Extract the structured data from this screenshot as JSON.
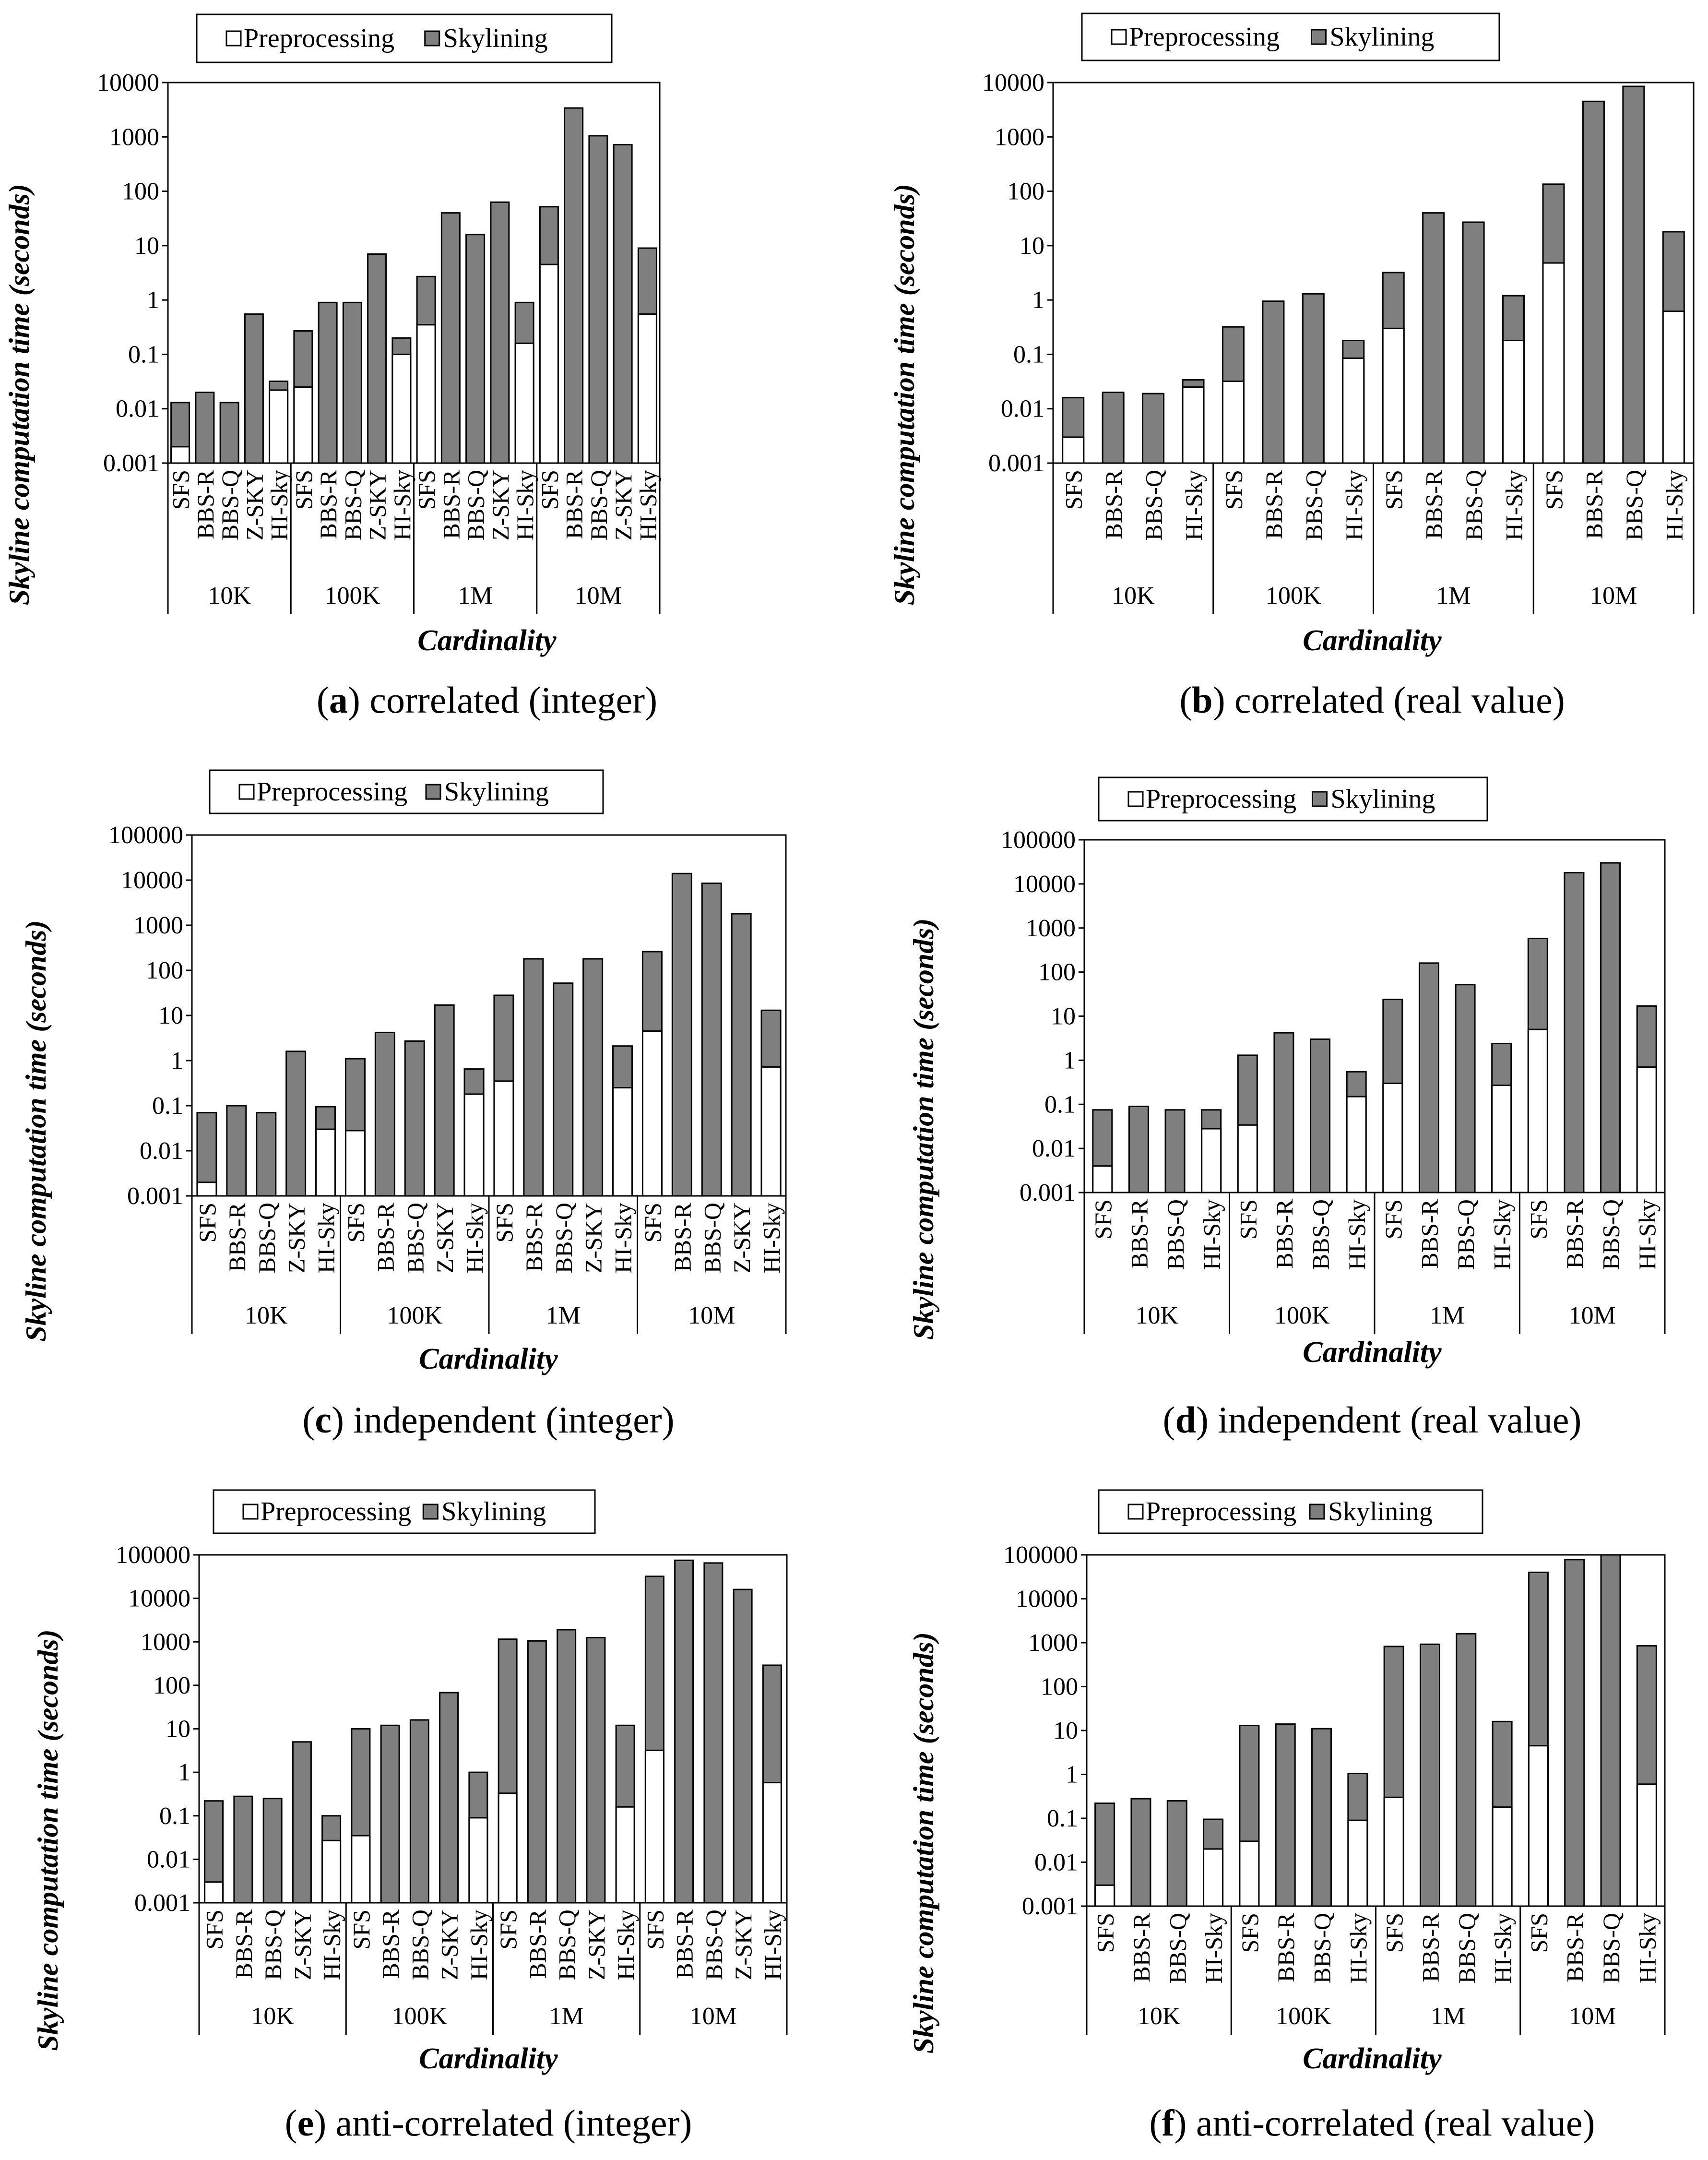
{
  "legend": {
    "preprocessing": "Preprocessing",
    "skylining": "Skylining"
  },
  "colors": {
    "skylining": "#7f7f7f",
    "preprocessing": "#ffffff",
    "stroke": "#000000"
  },
  "chart_data": [
    {
      "type": "bar",
      "stacked": true,
      "log_scale": true,
      "label_letter": "a",
      "caption": "correlated (integer)",
      "ylabel": "Skyline computation time (seconds)",
      "xlabel": "Cardinality",
      "yticks": [
        "0.001",
        "0.01",
        "0.1",
        "1",
        "10",
        "100",
        "1000",
        "10000"
      ],
      "ylim": [
        0.001,
        10000
      ],
      "groups": [
        {
          "label": "10K",
          "bars": [
            {
              "label": "SFS",
              "pre": 0.002,
              "total": 0.013
            },
            {
              "label": "BBS-R",
              "pre": null,
              "total": 0.02
            },
            {
              "label": "BBS-Q",
              "pre": null,
              "total": 0.013
            },
            {
              "label": "Z-SKY",
              "pre": null,
              "total": 0.55
            },
            {
              "label": "HI-Sky",
              "pre": 0.022,
              "total": 0.032
            }
          ]
        },
        {
          "label": "100K",
          "bars": [
            {
              "label": "SFS",
              "pre": 0.025,
              "total": 0.27
            },
            {
              "label": "BBS-R",
              "pre": null,
              "total": 0.9
            },
            {
              "label": "BBS-Q",
              "pre": null,
              "total": 0.9
            },
            {
              "label": "Z-SKY",
              "pre": null,
              "total": 7
            },
            {
              "label": "HI-Sky",
              "pre": 0.1,
              "total": 0.2
            }
          ]
        },
        {
          "label": "1M",
          "bars": [
            {
              "label": "SFS",
              "pre": 0.35,
              "total": 2.7
            },
            {
              "label": "BBS-R",
              "pre": null,
              "total": 40
            },
            {
              "label": "BBS-Q",
              "pre": null,
              "total": 16
            },
            {
              "label": "Z-SKY",
              "pre": null,
              "total": 63
            },
            {
              "label": "HI-Sky",
              "pre": 0.16,
              "total": 0.9
            }
          ]
        },
        {
          "label": "10M",
          "bars": [
            {
              "label": "SFS",
              "pre": 4.5,
              "total": 52
            },
            {
              "label": "BBS-R",
              "pre": null,
              "total": 3400
            },
            {
              "label": "BBS-Q",
              "pre": null,
              "total": 1050
            },
            {
              "label": "Z-SKY",
              "pre": null,
              "total": 720
            },
            {
              "label": "HI-Sky",
              "pre": 0.55,
              "total": 9
            }
          ]
        }
      ]
    },
    {
      "type": "bar",
      "stacked": true,
      "log_scale": true,
      "label_letter": "b",
      "caption": "correlated (real value)",
      "ylabel": "Skyline computation time (seconds)",
      "xlabel": "Cardinality",
      "yticks": [
        "0.001",
        "0.01",
        "0.1",
        "1",
        "10",
        "100",
        "1000",
        "10000"
      ],
      "ylim": [
        0.001,
        10000
      ],
      "groups": [
        {
          "label": "10K",
          "bars": [
            {
              "label": "SFS",
              "pre": 0.003,
              "total": 0.016
            },
            {
              "label": "BBS-R",
              "pre": null,
              "total": 0.02
            },
            {
              "label": "BBS-Q",
              "pre": null,
              "total": 0.019
            },
            {
              "label": "HI-Sky",
              "pre": 0.025,
              "total": 0.034
            }
          ]
        },
        {
          "label": "100K",
          "bars": [
            {
              "label": "SFS",
              "pre": 0.032,
              "total": 0.32
            },
            {
              "label": "BBS-R",
              "pre": null,
              "total": 0.95
            },
            {
              "label": "BBS-Q",
              "pre": null,
              "total": 1.3
            },
            {
              "label": "HI-Sky",
              "pre": 0.085,
              "total": 0.18
            }
          ]
        },
        {
          "label": "1M",
          "bars": [
            {
              "label": "SFS",
              "pre": 0.3,
              "total": 3.2
            },
            {
              "label": "BBS-R",
              "pre": null,
              "total": 40
            },
            {
              "label": "BBS-Q",
              "pre": null,
              "total": 27
            },
            {
              "label": "HI-Sky",
              "pre": 0.18,
              "total": 1.2
            }
          ]
        },
        {
          "label": "10M",
          "bars": [
            {
              "label": "SFS",
              "pre": 4.8,
              "total": 135
            },
            {
              "label": "BBS-R",
              "pre": null,
              "total": 4500
            },
            {
              "label": "BBS-Q",
              "pre": null,
              "total": 8500
            },
            {
              "label": "HI-Sky",
              "pre": 0.62,
              "total": 18
            }
          ]
        }
      ]
    },
    {
      "type": "bar",
      "stacked": true,
      "log_scale": true,
      "label_letter": "c",
      "caption": "independent (integer)",
      "ylabel": "Skyline computation time (seconds)",
      "xlabel": "Cardinality",
      "yticks": [
        "0.001",
        "0.01",
        "0.1",
        "1",
        "10",
        "100",
        "1000",
        "10000",
        "100000"
      ],
      "ylim": [
        0.001,
        100000
      ],
      "groups": [
        {
          "label": "10K",
          "bars": [
            {
              "label": "SFS",
              "pre": 0.002,
              "total": 0.07
            },
            {
              "label": "BBS-R",
              "pre": null,
              "total": 0.1
            },
            {
              "label": "BBS-Q",
              "pre": null,
              "total": 0.07
            },
            {
              "label": "Z-SKY",
              "pre": null,
              "total": 1.6
            },
            {
              "label": "HI-Sky",
              "pre": 0.03,
              "total": 0.095
            }
          ]
        },
        {
          "label": "100K",
          "bars": [
            {
              "label": "SFS",
              "pre": 0.028,
              "total": 1.1
            },
            {
              "label": "BBS-R",
              "pre": null,
              "total": 4.2
            },
            {
              "label": "BBS-Q",
              "pre": null,
              "total": 2.7
            },
            {
              "label": "Z-SKY",
              "pre": null,
              "total": 17
            },
            {
              "label": "HI-Sky",
              "pre": 0.18,
              "total": 0.65
            }
          ]
        },
        {
          "label": "1M",
          "bars": [
            {
              "label": "SFS",
              "pre": 0.35,
              "total": 28
            },
            {
              "label": "BBS-R",
              "pre": null,
              "total": 180
            },
            {
              "label": "BBS-Q",
              "pre": null,
              "total": 52
            },
            {
              "label": "Z-SKY",
              "pre": null,
              "total": 180
            },
            {
              "label": "HI-Sky",
              "pre": 0.25,
              "total": 2.1
            }
          ]
        },
        {
          "label": "10M",
          "bars": [
            {
              "label": "SFS",
              "pre": 4.5,
              "total": 260
            },
            {
              "label": "BBS-R",
              "pre": null,
              "total": 14000
            },
            {
              "label": "BBS-Q",
              "pre": null,
              "total": 8500
            },
            {
              "label": "Z-SKY",
              "pre": null,
              "total": 1800
            },
            {
              "label": "HI-Sky",
              "pre": 0.72,
              "total": 13
            }
          ]
        }
      ]
    },
    {
      "type": "bar",
      "stacked": true,
      "log_scale": true,
      "label_letter": "d",
      "caption": "independent (real value)",
      "ylabel": "Skyline computation time (seconds)",
      "xlabel": "Cardinality",
      "yticks": [
        "0.001",
        "0.01",
        "0.1",
        "1",
        "10",
        "100",
        "1000",
        "10000",
        "100000"
      ],
      "ylim": [
        0.001,
        100000
      ],
      "groups": [
        {
          "label": "10K",
          "bars": [
            {
              "label": "SFS",
              "pre": 0.004,
              "total": 0.075
            },
            {
              "label": "BBS-R",
              "pre": null,
              "total": 0.09
            },
            {
              "label": "BBS-Q",
              "pre": null,
              "total": 0.075
            },
            {
              "label": "HI-Sky",
              "pre": 0.028,
              "total": 0.075
            }
          ]
        },
        {
          "label": "100K",
          "bars": [
            {
              "label": "SFS",
              "pre": 0.034,
              "total": 1.3
            },
            {
              "label": "BBS-R",
              "pre": null,
              "total": 4.2
            },
            {
              "label": "BBS-Q",
              "pre": null,
              "total": 3
            },
            {
              "label": "HI-Sky",
              "pre": 0.15,
              "total": 0.55
            }
          ]
        },
        {
          "label": "1M",
          "bars": [
            {
              "label": "SFS",
              "pre": 0.3,
              "total": 24
            },
            {
              "label": "BBS-R",
              "pre": null,
              "total": 160
            },
            {
              "label": "BBS-Q",
              "pre": null,
              "total": 52
            },
            {
              "label": "HI-Sky",
              "pre": 0.27,
              "total": 2.4
            }
          ]
        },
        {
          "label": "10M",
          "bars": [
            {
              "label": "SFS",
              "pre": 5,
              "total": 580
            },
            {
              "label": "BBS-R",
              "pre": null,
              "total": 18000
            },
            {
              "label": "BBS-Q",
              "pre": null,
              "total": 30000
            },
            {
              "label": "HI-Sky",
              "pre": 0.7,
              "total": 17
            }
          ]
        }
      ]
    },
    {
      "type": "bar",
      "stacked": true,
      "log_scale": true,
      "label_letter": "e",
      "caption": "anti-correlated (integer)",
      "ylabel": "Skyline computation time (seconds)",
      "xlabel": "Cardinality",
      "yticks": [
        "0.001",
        "0.01",
        "0.1",
        "1",
        "10",
        "100",
        "1000",
        "10000",
        "100000"
      ],
      "ylim": [
        0.001,
        100000
      ],
      "groups": [
        {
          "label": "10K",
          "bars": [
            {
              "label": "SFS",
              "pre": 0.003,
              "total": 0.22
            },
            {
              "label": "BBS-R",
              "pre": null,
              "total": 0.28
            },
            {
              "label": "BBS-Q",
              "pre": null,
              "total": 0.25
            },
            {
              "label": "Z-SKY",
              "pre": null,
              "total": 5
            },
            {
              "label": "HI-Sky",
              "pre": 0.027,
              "total": 0.1
            }
          ]
        },
        {
          "label": "100K",
          "bars": [
            {
              "label": "SFS",
              "pre": 0.035,
              "total": 10
            },
            {
              "label": "BBS-R",
              "pre": null,
              "total": 12
            },
            {
              "label": "BBS-Q",
              "pre": null,
              "total": 16
            },
            {
              "label": "Z-SKY",
              "pre": null,
              "total": 68
            },
            {
              "label": "HI-Sky",
              "pre": 0.09,
              "total": 1
            }
          ]
        },
        {
          "label": "1M",
          "bars": [
            {
              "label": "SFS",
              "pre": 0.33,
              "total": 1150
            },
            {
              "label": "BBS-R",
              "pre": null,
              "total": 1050
            },
            {
              "label": "BBS-Q",
              "pre": null,
              "total": 1900
            },
            {
              "label": "Z-SKY",
              "pre": null,
              "total": 1250
            },
            {
              "label": "HI-Sky",
              "pre": 0.16,
              "total": 12
            }
          ]
        },
        {
          "label": "10M",
          "bars": [
            {
              "label": "SFS",
              "pre": 3.2,
              "total": 32000
            },
            {
              "label": "BBS-R",
              "pre": null,
              "total": 75000
            },
            {
              "label": "BBS-Q",
              "pre": null,
              "total": 65000
            },
            {
              "label": "Z-SKY",
              "pre": null,
              "total": 16000
            },
            {
              "label": "HI-Sky",
              "pre": 0.58,
              "total": 290
            }
          ]
        }
      ]
    },
    {
      "type": "bar",
      "stacked": true,
      "log_scale": true,
      "label_letter": "f",
      "caption": "anti-correlated (real value)",
      "ylabel": "Skyline computation time (seconds)",
      "xlabel": "Cardinality",
      "yticks": [
        "0.001",
        "0.01",
        "0.1",
        "1",
        "10",
        "100",
        "1000",
        "10000",
        "100000"
      ],
      "ylim": [
        0.001,
        100000
      ],
      "groups": [
        {
          "label": "10K",
          "bars": [
            {
              "label": "SFS",
              "pre": 0.003,
              "total": 0.22
            },
            {
              "label": "BBS-R",
              "pre": null,
              "total": 0.28
            },
            {
              "label": "BBS-Q",
              "pre": null,
              "total": 0.25
            },
            {
              "label": "HI-Sky",
              "pre": 0.02,
              "total": 0.095
            }
          ]
        },
        {
          "label": "100K",
          "bars": [
            {
              "label": "SFS",
              "pre": 0.03,
              "total": 13
            },
            {
              "label": "BBS-R",
              "pre": null,
              "total": 14
            },
            {
              "label": "BBS-Q",
              "pre": null,
              "total": 11
            },
            {
              "label": "HI-Sky",
              "pre": 0.09,
              "total": 1.05
            }
          ]
        },
        {
          "label": "1M",
          "bars": [
            {
              "label": "SFS",
              "pre": 0.3,
              "total": 820
            },
            {
              "label": "BBS-R",
              "pre": null,
              "total": 920
            },
            {
              "label": "BBS-Q",
              "pre": null,
              "total": 1600
            },
            {
              "label": "HI-Sky",
              "pre": 0.18,
              "total": 16
            }
          ]
        },
        {
          "label": "10M",
          "bars": [
            {
              "label": "SFS",
              "pre": 4.5,
              "total": 40000
            },
            {
              "label": "BBS-R",
              "pre": null,
              "total": 78000
            },
            {
              "label": "BBS-Q",
              "pre": null,
              "total": 100000
            },
            {
              "label": "HI-Sky",
              "pre": 0.6,
              "total": 850
            }
          ]
        }
      ]
    }
  ]
}
